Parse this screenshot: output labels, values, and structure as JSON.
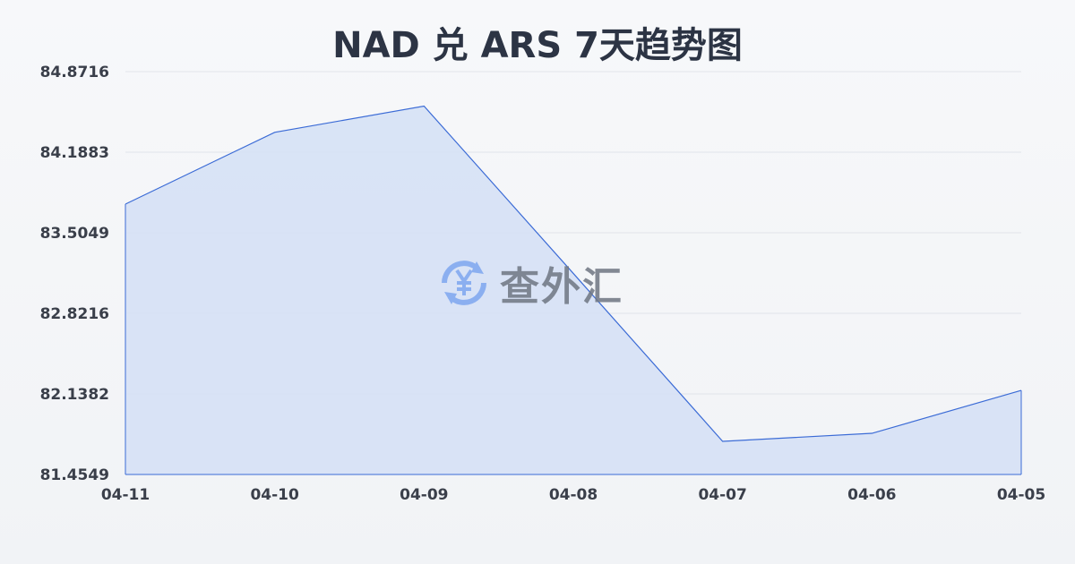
{
  "chart_data": {
    "type": "area",
    "title": "NAD 兑 ARS 7天趋势图",
    "categories": [
      "04-11",
      "04-10",
      "04-09",
      "04-08",
      "04-07",
      "04-06",
      "04-05"
    ],
    "series": [
      {
        "values": [
          83.748,
          84.357,
          84.579,
          83.16,
          81.736,
          81.804,
          82.168
        ]
      }
    ],
    "yticks": [
      "84.8716",
      "84.1883",
      "83.5049",
      "82.8216",
      "82.1382",
      "81.4549"
    ],
    "ylim": [
      81.4549,
      84.8716
    ],
    "grid": true,
    "line_color": "#3b6bd6",
    "fill_color": "#d6e1f5"
  },
  "watermark": {
    "text": "查外汇",
    "icon": "yen-exchange-icon",
    "color": "#5b8def"
  }
}
